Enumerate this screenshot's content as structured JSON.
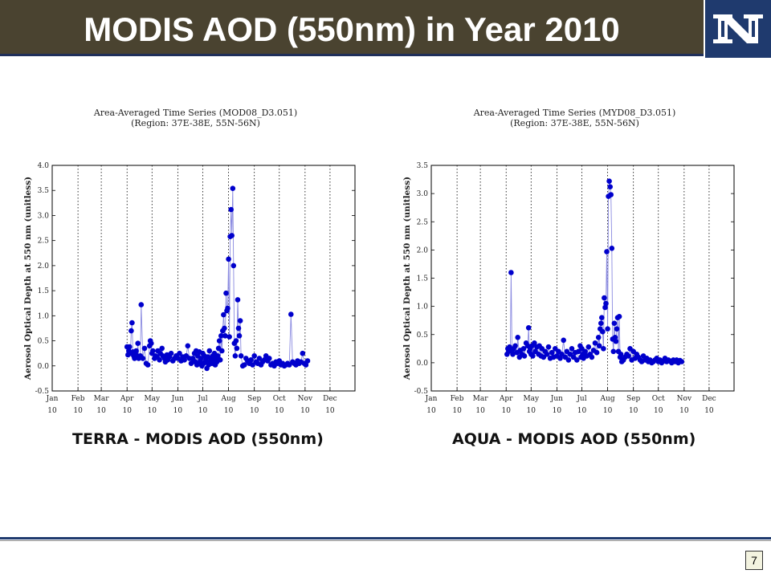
{
  "header": {
    "title": "MODIS AOD (550nm) in Year 2010"
  },
  "logo": {
    "name": "unr-n-logo",
    "bg": "#1f3a6e"
  },
  "captions": {
    "left": "TERRA - MODIS AOD (550nm)",
    "right": "AQUA - MODIS AOD (550nm)"
  },
  "page_number": "7",
  "colors": {
    "series": "#0000cc",
    "line": "#8a8ae0"
  },
  "chart_data": [
    {
      "type": "scatter",
      "title": "Area-Averaged Time Series (MOD08_D3.051)",
      "subtitle": "(Region: 37E-38E, 55N-56N)",
      "ylabel": "Aerosol Optical Depth at 550 nm  (unitless)",
      "xlabel": "",
      "x_unit": "day of year 2010",
      "xlim": [
        1,
        365
      ],
      "ylim": [
        -0.5,
        4.0
      ],
      "yticks": [
        -0.5,
        0.0,
        0.5,
        1.0,
        1.5,
        2.0,
        2.5,
        3.0,
        3.5,
        4.0
      ],
      "xticks": [
        {
          "label": "Jan",
          "sub": "10",
          "x": 1
        },
        {
          "label": "Feb",
          "sub": "10",
          "x": 32
        },
        {
          "label": "Mar",
          "sub": "10",
          "x": 60
        },
        {
          "label": "Apr",
          "sub": "10",
          "x": 91
        },
        {
          "label": "May",
          "sub": "10",
          "x": 121
        },
        {
          "label": "Jun",
          "sub": "10",
          "x": 152
        },
        {
          "label": "Jul",
          "sub": "10",
          "x": 182
        },
        {
          "label": "Aug",
          "sub": "10",
          "x": 213
        },
        {
          "label": "Sep",
          "sub": "10",
          "x": 244
        },
        {
          "label": "Oct",
          "sub": "10",
          "x": 274
        },
        {
          "label": "Nov",
          "sub": "10",
          "x": 305
        },
        {
          "label": "Dec",
          "sub": "10",
          "x": 335
        }
      ],
      "grid": "vertical dotted at month starts",
      "points": [
        [
          91,
          0.38
        ],
        [
          92,
          0.22
        ],
        [
          93,
          0.3
        ],
        [
          94,
          0.38
        ],
        [
          95,
          0.25
        ],
        [
          96,
          0.7
        ],
        [
          97,
          0.86
        ],
        [
          98,
          0.28
        ],
        [
          99,
          0.2
        ],
        [
          100,
          0.15
        ],
        [
          101,
          0.26
        ],
        [
          102,
          0.3
        ],
        [
          103,
          0.2
        ],
        [
          104,
          0.45
        ],
        [
          105,
          0.15
        ],
        [
          107,
          0.2
        ],
        [
          108,
          1.22
        ],
        [
          110,
          0.15
        ],
        [
          112,
          0.35
        ],
        [
          114,
          0.05
        ],
        [
          116,
          0.02
        ],
        [
          118,
          0.4
        ],
        [
          119,
          0.5
        ],
        [
          120,
          0.45
        ],
        [
          121,
          0.25
        ],
        [
          122,
          0.3
        ],
        [
          124,
          0.15
        ],
        [
          125,
          0.2
        ],
        [
          127,
          0.18
        ],
        [
          128,
          0.3
        ],
        [
          130,
          0.12
        ],
        [
          131,
          0.25
        ],
        [
          133,
          0.35
        ],
        [
          134,
          0.2
        ],
        [
          136,
          0.15
        ],
        [
          137,
          0.08
        ],
        [
          139,
          0.22
        ],
        [
          140,
          0.12
        ],
        [
          142,
          0.18
        ],
        [
          144,
          0.25
        ],
        [
          146,
          0.1
        ],
        [
          148,
          0.15
        ],
        [
          150,
          0.2
        ],
        [
          152,
          0.15
        ],
        [
          154,
          0.25
        ],
        [
          156,
          0.1
        ],
        [
          158,
          0.18
        ],
        [
          160,
          0.12
        ],
        [
          162,
          0.2
        ],
        [
          164,
          0.4
        ],
        [
          166,
          0.15
        ],
        [
          168,
          0.05
        ],
        [
          170,
          0.15
        ],
        [
          171,
          0.1
        ],
        [
          172,
          0.25
        ],
        [
          173,
          0.08
        ],
        [
          174,
          0.3
        ],
        [
          175,
          0.02
        ],
        [
          176,
          0.2
        ],
        [
          177,
          0.05
        ],
        [
          178,
          0.28
        ],
        [
          179,
          0.1
        ],
        [
          180,
          0.15
        ],
        [
          181,
          0.0
        ],
        [
          182,
          0.25
        ],
        [
          183,
          0.05
        ],
        [
          184,
          0.2
        ],
        [
          185,
          0.08
        ],
        [
          186,
          0.12
        ],
        [
          187,
          -0.05
        ],
        [
          188,
          0.18
        ],
        [
          189,
          0.02
        ],
        [
          190,
          0.3
        ],
        [
          191,
          0.08
        ],
        [
          192,
          0.15
        ],
        [
          193,
          0.05
        ],
        [
          194,
          0.2
        ],
        [
          195,
          0.1
        ],
        [
          196,
          0.25
        ],
        [
          197,
          0.02
        ],
        [
          198,
          0.15
        ],
        [
          199,
          0.08
        ],
        [
          200,
          0.2
        ],
        [
          201,
          0.35
        ],
        [
          202,
          0.5
        ],
        [
          203,
          0.12
        ],
        [
          204,
          0.6
        ],
        [
          205,
          0.3
        ],
        [
          206,
          0.7
        ],
        [
          207,
          1.02
        ],
        [
          208,
          0.75
        ],
        [
          209,
          0.6
        ],
        [
          210,
          1.45
        ],
        [
          211,
          1.1
        ],
        [
          212,
          1.15
        ],
        [
          213,
          2.13
        ],
        [
          214,
          0.58
        ],
        [
          215,
          2.58
        ],
        [
          216,
          3.12
        ],
        [
          217,
          2.6
        ],
        [
          218,
          3.54
        ],
        [
          219,
          2.0
        ],
        [
          220,
          0.45
        ],
        [
          221,
          0.2
        ],
        [
          222,
          0.5
        ],
        [
          223,
          0.35
        ],
        [
          224,
          1.32
        ],
        [
          225,
          0.75
        ],
        [
          226,
          0.6
        ],
        [
          227,
          0.9
        ],
        [
          228,
          0.2
        ],
        [
          230,
          0.0
        ],
        [
          232,
          0.02
        ],
        [
          234,
          0.15
        ],
        [
          236,
          0.1
        ],
        [
          238,
          0.05
        ],
        [
          240,
          0.12
        ],
        [
          242,
          0.02
        ],
        [
          244,
          0.2
        ],
        [
          246,
          0.08
        ],
        [
          248,
          0.05
        ],
        [
          250,
          0.15
        ],
        [
          252,
          0.02
        ],
        [
          254,
          0.08
        ],
        [
          256,
          0.12
        ],
        [
          258,
          0.2
        ],
        [
          260,
          0.1
        ],
        [
          262,
          0.15
        ],
        [
          264,
          0.02
        ],
        [
          266,
          0.05
        ],
        [
          268,
          0.0
        ],
        [
          270,
          0.08
        ],
        [
          272,
          0.05
        ],
        [
          274,
          0.1
        ],
        [
          276,
          0.02
        ],
        [
          278,
          0.05
        ],
        [
          280,
          0.0
        ],
        [
          282,
          0.02
        ],
        [
          284,
          0.05
        ],
        [
          286,
          0.02
        ],
        [
          288,
          1.03
        ],
        [
          290,
          0.08
        ],
        [
          292,
          0.05
        ],
        [
          294,
          0.02
        ],
        [
          296,
          0.1
        ],
        [
          298,
          0.05
        ],
        [
          300,
          0.08
        ],
        [
          302,
          0.25
        ],
        [
          304,
          0.05
        ],
        [
          306,
          0.02
        ],
        [
          308,
          0.1
        ]
      ]
    },
    {
      "type": "scatter",
      "title": "Area-Averaged Time Series (MYD08_D3.051)",
      "subtitle": "(Region: 37E-38E, 55N-56N)",
      "ylabel": "Aerosol Optical Depth at 550 nm  (unitless)",
      "xlabel": "",
      "x_unit": "day of year 2010",
      "xlim": [
        1,
        365
      ],
      "ylim": [
        -0.5,
        3.5
      ],
      "yticks": [
        -0.5,
        0.0,
        0.5,
        1.0,
        1.5,
        2.0,
        2.5,
        3.0,
        3.5
      ],
      "xticks": [
        {
          "label": "Jan",
          "sub": "10",
          "x": 1
        },
        {
          "label": "Feb",
          "sub": "10",
          "x": 32
        },
        {
          "label": "Mar",
          "sub": "10",
          "x": 60
        },
        {
          "label": "Apr",
          "sub": "10",
          "x": 91
        },
        {
          "label": "May",
          "sub": "10",
          "x": 121
        },
        {
          "label": "Jun",
          "sub": "10",
          "x": 152
        },
        {
          "label": "Jul",
          "sub": "10",
          "x": 182
        },
        {
          "label": "Aug",
          "sub": "10",
          "x": 213
        },
        {
          "label": "Sep",
          "sub": "10",
          "x": 244
        },
        {
          "label": "Oct",
          "sub": "10",
          "x": 274
        },
        {
          "label": "Nov",
          "sub": "10",
          "x": 305
        },
        {
          "label": "Dec",
          "sub": "10",
          "x": 335
        }
      ],
      "grid": "vertical dotted at month starts",
      "points": [
        [
          92,
          0.15
        ],
        [
          93,
          0.25
        ],
        [
          94,
          0.2
        ],
        [
          95,
          0.28
        ],
        [
          96,
          0.22
        ],
        [
          97,
          1.6
        ],
        [
          98,
          0.2
        ],
        [
          99,
          0.15
        ],
        [
          100,
          0.25
        ],
        [
          102,
          0.3
        ],
        [
          104,
          0.18
        ],
        [
          105,
          0.45
        ],
        [
          107,
          0.1
        ],
        [
          108,
          0.22
        ],
        [
          110,
          0.15
        ],
        [
          112,
          0.25
        ],
        [
          113,
          0.12
        ],
        [
          115,
          0.35
        ],
        [
          117,
          0.3
        ],
        [
          118,
          0.62
        ],
        [
          119,
          0.2
        ],
        [
          120,
          0.25
        ],
        [
          121,
          0.15
        ],
        [
          122,
          0.3
        ],
        [
          123,
          0.12
        ],
        [
          125,
          0.35
        ],
        [
          126,
          0.2
        ],
        [
          128,
          0.28
        ],
        [
          130,
          0.15
        ],
        [
          131,
          0.3
        ],
        [
          133,
          0.12
        ],
        [
          134,
          0.25
        ],
        [
          136,
          0.1
        ],
        [
          138,
          0.2
        ],
        [
          140,
          0.15
        ],
        [
          142,
          0.28
        ],
        [
          144,
          0.08
        ],
        [
          146,
          0.18
        ],
        [
          148,
          0.1
        ],
        [
          150,
          0.25
        ],
        [
          152,
          0.12
        ],
        [
          154,
          0.2
        ],
        [
          156,
          0.08
        ],
        [
          158,
          0.15
        ],
        [
          160,
          0.4
        ],
        [
          162,
          0.1
        ],
        [
          164,
          0.2
        ],
        [
          166,
          0.05
        ],
        [
          168,
          0.15
        ],
        [
          170,
          0.25
        ],
        [
          172,
          0.1
        ],
        [
          174,
          0.18
        ],
        [
          176,
          0.05
        ],
        [
          178,
          0.2
        ],
        [
          180,
          0.3
        ],
        [
          181,
          0.1
        ],
        [
          182,
          0.25
        ],
        [
          183,
          0.15
        ],
        [
          184,
          0.08
        ],
        [
          186,
          0.2
        ],
        [
          188,
          0.12
        ],
        [
          190,
          0.28
        ],
        [
          192,
          0.15
        ],
        [
          194,
          0.1
        ],
        [
          196,
          0.22
        ],
        [
          198,
          0.35
        ],
        [
          200,
          0.18
        ],
        [
          202,
          0.45
        ],
        [
          203,
          0.3
        ],
        [
          204,
          0.6
        ],
        [
          205,
          0.7
        ],
        [
          206,
          0.8
        ],
        [
          207,
          0.55
        ],
        [
          208,
          0.25
        ],
        [
          209,
          1.15
        ],
        [
          210,
          0.98
        ],
        [
          211,
          1.05
        ],
        [
          212,
          1.97
        ],
        [
          213,
          0.6
        ],
        [
          214,
          2.95
        ],
        [
          215,
          3.22
        ],
        [
          216,
          3.12
        ],
        [
          217,
          2.98
        ],
        [
          218,
          2.03
        ],
        [
          219,
          0.42
        ],
        [
          220,
          0.2
        ],
        [
          221,
          0.7
        ],
        [
          222,
          0.45
        ],
        [
          223,
          0.38
        ],
        [
          224,
          0.6
        ],
        [
          225,
          0.8
        ],
        [
          226,
          0.2
        ],
        [
          227,
          0.82
        ],
        [
          228,
          0.1
        ],
        [
          229,
          0.15
        ],
        [
          230,
          0.02
        ],
        [
          232,
          0.05
        ],
        [
          234,
          0.1
        ],
        [
          236,
          0.15
        ],
        [
          238,
          0.12
        ],
        [
          240,
          0.25
        ],
        [
          242,
          0.05
        ],
        [
          244,
          0.2
        ],
        [
          246,
          0.08
        ],
        [
          248,
          0.15
        ],
        [
          250,
          0.1
        ],
        [
          252,
          0.05
        ],
        [
          254,
          0.02
        ],
        [
          256,
          0.12
        ],
        [
          258,
          0.05
        ],
        [
          260,
          0.08
        ],
        [
          262,
          0.02
        ],
        [
          264,
          0.05
        ],
        [
          266,
          0.0
        ],
        [
          268,
          0.02
        ],
        [
          270,
          0.05
        ],
        [
          272,
          0.08
        ],
        [
          274,
          0.02
        ],
        [
          276,
          0.05
        ],
        [
          278,
          0.0
        ],
        [
          280,
          0.03
        ],
        [
          282,
          0.08
        ],
        [
          284,
          0.02
        ],
        [
          286,
          0.05
        ],
        [
          288,
          0.03
        ],
        [
          290,
          0.0
        ],
        [
          292,
          0.05
        ],
        [
          294,
          0.02
        ],
        [
          296,
          0.05
        ],
        [
          298,
          0.0
        ],
        [
          300,
          0.04
        ],
        [
          302,
          0.02
        ]
      ]
    }
  ]
}
